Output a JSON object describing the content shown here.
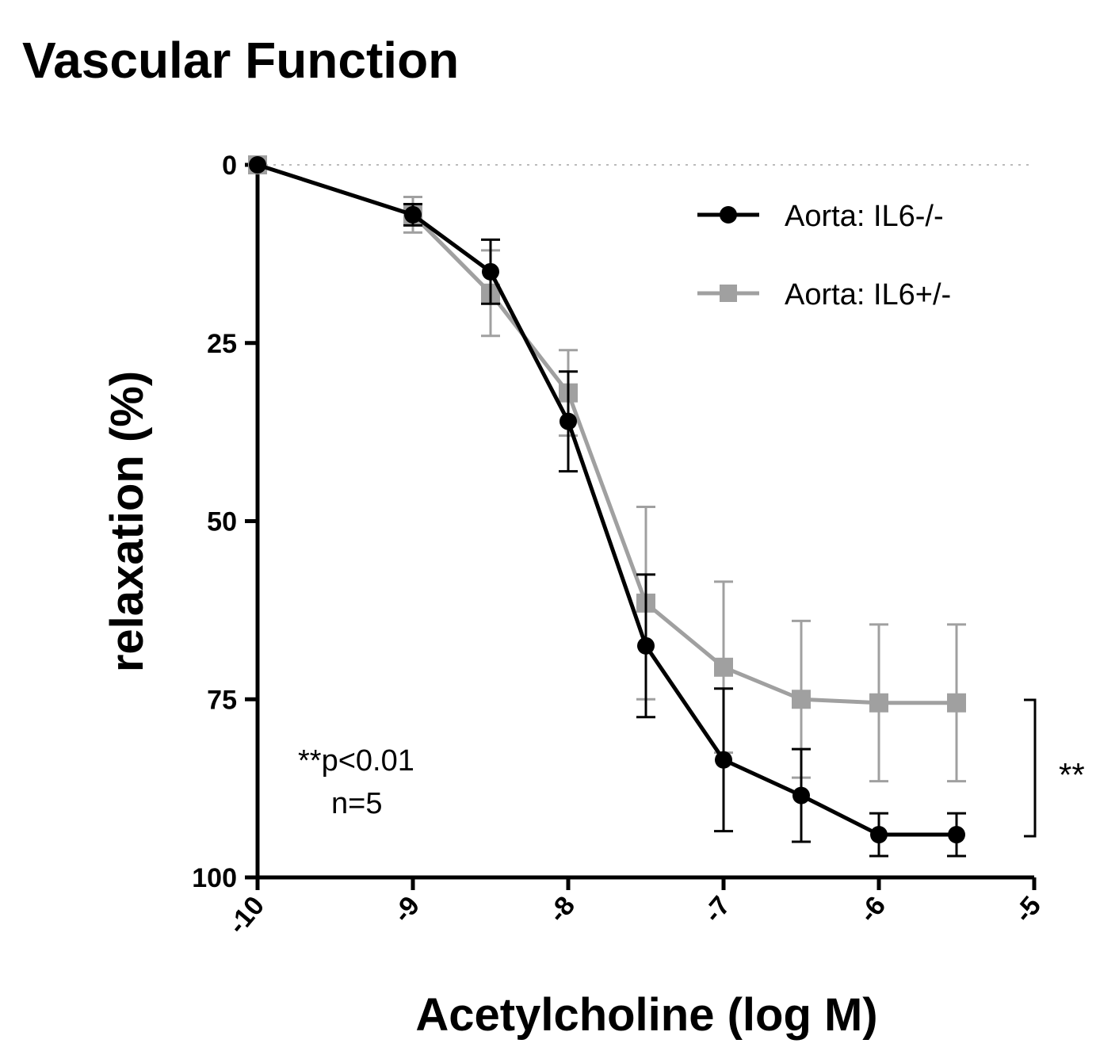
{
  "chart_data": {
    "type": "line",
    "title": "Vascular Function",
    "xlabel": "Acetylcholine (log M)",
    "ylabel": "relaxation (%)",
    "xlim": [
      -10,
      -5
    ],
    "ylim": [
      0,
      100
    ],
    "y_inverted": true,
    "x_ticks": [
      "-10",
      "-9",
      "-8",
      "-7",
      "-6",
      "-5"
    ],
    "y_ticks": [
      "0",
      "25",
      "50",
      "75",
      "100"
    ],
    "x": [
      -10,
      -9,
      -8.5,
      -8,
      -7.5,
      -7,
      -6.5,
      -6,
      -5.5
    ],
    "series": [
      {
        "name": "Aorta: IL6-/-",
        "color": "#000000",
        "marker": "circle",
        "values": [
          0,
          7,
          15,
          36,
          67.5,
          83.5,
          88.5,
          94,
          94
        ],
        "error": [
          0,
          1.5,
          4.5,
          7,
          10,
          10,
          6.5,
          3,
          3
        ]
      },
      {
        "name": "Aorta: IL6+/-",
        "color": "#a0a0a0",
        "marker": "square",
        "values": [
          0,
          7,
          18,
          32,
          61.5,
          70.5,
          75,
          75.5,
          75.5
        ],
        "error": [
          0,
          2.5,
          6,
          6,
          13.5,
          12,
          11,
          11,
          11
        ]
      }
    ],
    "legend": {
      "placement": "top-right"
    },
    "annotations": {
      "pvalue": "**p<0.01",
      "n": "n=5",
      "significance": "**"
    },
    "grid": false
  }
}
